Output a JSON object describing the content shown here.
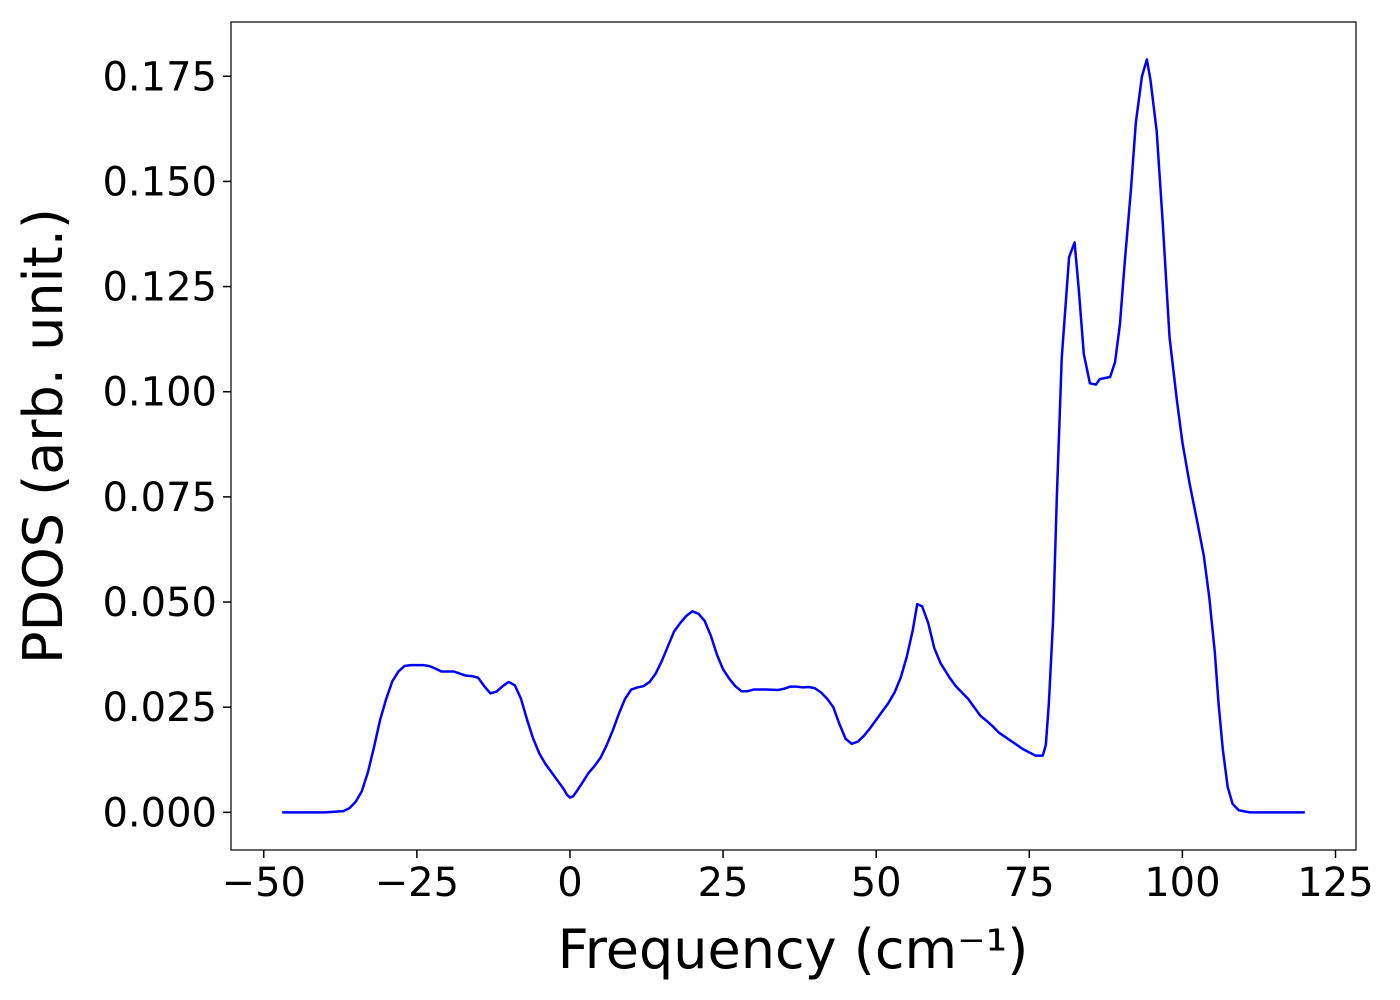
{
  "chart_data": {
    "type": "line",
    "xlabel": "Frequency (cm⁻¹)",
    "ylabel": "PDOS (arb. unit.)",
    "xlim": [
      -55.35,
      128.35
    ],
    "ylim": [
      -0.00895,
      0.1879
    ],
    "xticks": [
      {
        "value": -50,
        "label": "−50"
      },
      {
        "value": -25,
        "label": "−25"
      },
      0,
      25,
      50,
      75,
      100,
      125
    ],
    "yticks": [
      {
        "value": 0,
        "label": "0.000"
      },
      {
        "value": 0.025,
        "label": "0.025"
      },
      {
        "value": 0.05,
        "label": "0.050"
      },
      {
        "value": 0.075,
        "label": "0.075"
      },
      {
        "value": 0.1,
        "label": "0.100"
      },
      {
        "value": 0.125,
        "label": "0.125"
      },
      {
        "value": 0.15,
        "label": "0.150"
      },
      {
        "value": 0.175,
        "label": "0.175"
      }
    ],
    "series": [
      {
        "color": "#0000ff",
        "x": [
          -47,
          -40,
          -37,
          -36,
          -35,
          -34,
          -33,
          -32,
          -31,
          -30,
          -29,
          -28,
          -27,
          -26,
          -25,
          -24,
          -23,
          -22,
          -21,
          -20,
          -19,
          -18,
          -17,
          -16,
          -15,
          -14,
          -13,
          -12,
          -11,
          -10,
          -9,
          -8,
          -7,
          -6,
          -5,
          -4,
          -3,
          -2,
          -1,
          -0.5,
          0,
          0.5,
          1,
          2,
          3,
          4,
          5,
          6,
          7,
          8,
          9,
          10,
          11,
          12,
          13,
          14,
          15,
          16,
          17,
          18,
          19,
          20,
          21,
          22,
          23,
          24,
          25,
          26,
          27,
          28,
          29,
          30,
          32,
          34,
          35,
          36,
          37,
          38,
          39,
          40,
          41,
          42,
          43,
          44,
          45,
          46,
          47,
          48,
          49,
          50,
          51,
          52,
          53,
          54,
          55,
          56,
          56.7,
          57.5,
          58.5,
          59.5,
          60.5,
          62,
          63,
          64,
          65,
          66,
          67,
          68,
          69,
          70,
          72,
          74,
          76,
          77.2,
          77.7,
          78.2,
          78.9,
          79.5,
          80.3,
          81.5,
          82.4,
          83.1,
          83.9,
          84.9,
          85.9,
          86.5,
          88.2,
          89,
          89.8,
          90.6,
          91.6,
          92.4,
          93.4,
          94.2,
          94.8,
          95.8,
          96.8,
          97.9,
          99.1,
          100,
          101.2,
          102.3,
          103.5,
          104.4,
          105.3,
          105.9,
          106.6,
          107.4,
          108.2,
          109.2,
          111,
          120
        ],
        "values": [
          0,
          0,
          0.0003,
          0.001,
          0.0025,
          0.005,
          0.0095,
          0.0155,
          0.022,
          0.027,
          0.0312,
          0.0335,
          0.0348,
          0.035,
          0.035,
          0.035,
          0.0348,
          0.0342,
          0.0335,
          0.0335,
          0.0335,
          0.033,
          0.0325,
          0.0324,
          0.032,
          0.03,
          0.0283,
          0.0287,
          0.03,
          0.031,
          0.0302,
          0.027,
          0.022,
          0.0175,
          0.014,
          0.0115,
          0.0095,
          0.0075,
          0.0055,
          0.0042,
          0.0035,
          0.0038,
          0.0048,
          0.007,
          0.0093,
          0.011,
          0.013,
          0.016,
          0.0195,
          0.0235,
          0.027,
          0.0292,
          0.0297,
          0.03,
          0.031,
          0.033,
          0.036,
          0.0395,
          0.043,
          0.045,
          0.0467,
          0.0478,
          0.0472,
          0.0455,
          0.042,
          0.0375,
          0.034,
          0.0318,
          0.03,
          0.0288,
          0.0288,
          0.0292,
          0.0292,
          0.0291,
          0.0294,
          0.0299,
          0.0299,
          0.0297,
          0.0298,
          0.0295,
          0.0285,
          0.027,
          0.025,
          0.021,
          0.0175,
          0.0163,
          0.0168,
          0.0182,
          0.02,
          0.022,
          0.024,
          0.026,
          0.0285,
          0.032,
          0.037,
          0.0435,
          0.0495,
          0.049,
          0.045,
          0.039,
          0.0355,
          0.032,
          0.03,
          0.0285,
          0.027,
          0.025,
          0.023,
          0.0218,
          0.0205,
          0.019,
          0.017,
          0.015,
          0.0135,
          0.0135,
          0.016,
          0.026,
          0.046,
          0.075,
          0.108,
          0.132,
          0.1355,
          0.124,
          0.109,
          0.102,
          0.1017,
          0.103,
          0.1035,
          0.107,
          0.116,
          0.131,
          0.148,
          0.164,
          0.175,
          0.179,
          0.174,
          0.162,
          0.14,
          0.113,
          0.098,
          0.088,
          0.078,
          0.07,
          0.061,
          0.051,
          0.038,
          0.026,
          0.015,
          0.006,
          0.002,
          0.0005,
          0,
          0
        ]
      }
    ]
  }
}
